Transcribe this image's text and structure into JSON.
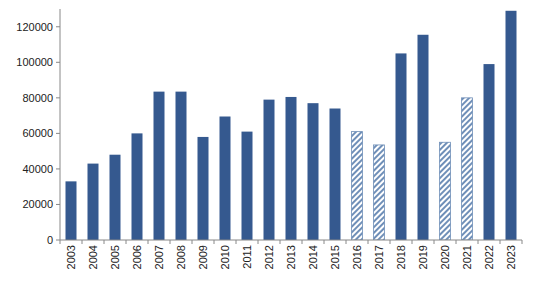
{
  "chart_data": {
    "type": "bar",
    "categories": [
      "2003",
      "2004",
      "2005",
      "2006",
      "2007",
      "2008",
      "2009",
      "2010",
      "2011",
      "2012",
      "2013",
      "2014",
      "2015",
      "2016",
      "2017",
      "2018",
      "2019",
      "2020",
      "2021",
      "2022",
      "2023"
    ],
    "values": [
      33000,
      43000,
      48000,
      60000,
      83500,
      83500,
      58000,
      69500,
      61000,
      79000,
      80500,
      77000,
      74000,
      61000,
      53500,
      105000,
      115500,
      55000,
      80000,
      99000,
      129000
    ],
    "color": "#35598f",
    "colors": [
      "#35598f",
      "#35598f",
      "#35598f",
      "#35598f",
      "#35598f",
      "#35598f",
      "#35598f",
      "#35598f",
      "#35598f",
      "#35598f",
      "#35598f",
      "#35598f",
      "#35598f",
      "#6f8fb8",
      "#6f8fb8",
      "#35598f",
      "#35598f",
      "#6f8fb8",
      "#6f8fb8",
      "#35598f",
      "#35598f"
    ],
    "ylim": [
      0,
      130000
    ],
    "yticks": [
      0,
      20000,
      40000,
      60000,
      80000,
      100000,
      120000
    ],
    "grid": false
  }
}
